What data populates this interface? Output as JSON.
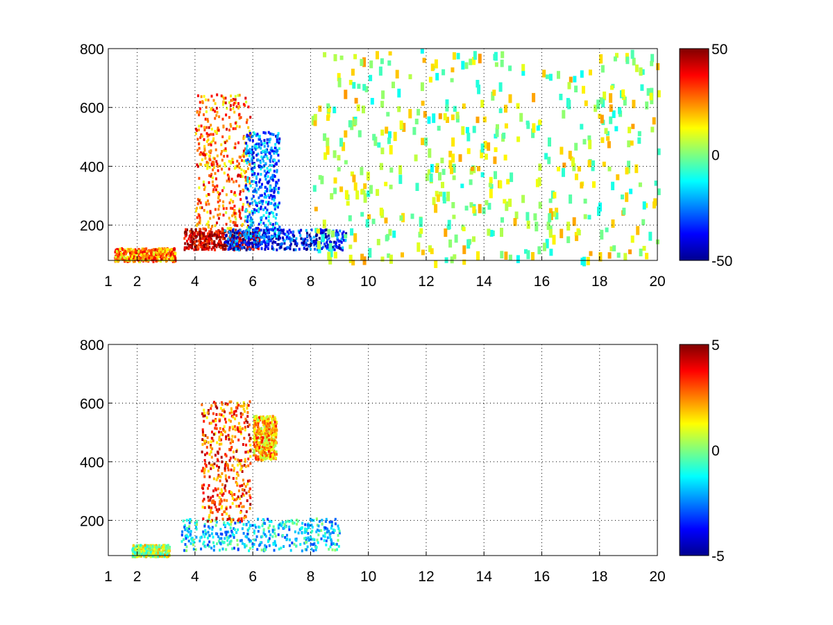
{
  "chart_data": [
    {
      "type": "heatmap",
      "title": "",
      "xlabel": "",
      "ylabel": "",
      "xlim": [
        1,
        20
      ],
      "ylim": [
        80,
        800
      ],
      "xticks": [
        "1",
        "2",
        "4",
        "6",
        "8",
        "10",
        "12",
        "14",
        "16",
        "18",
        "20"
      ],
      "yticks": [
        "200",
        "400",
        "600",
        "800"
      ],
      "grid": true,
      "colormap": "jet",
      "colorbar": {
        "min": -50,
        "max": 50,
        "ticks": [
          "-50",
          "0",
          "50"
        ]
      },
      "features": [
        {
          "label": "low-frequency strip",
          "x": [
            1.2,
            3.3
          ],
          "y": [
            80,
            125
          ],
          "value": 25
        },
        {
          "label": "strong band near 150",
          "x": [
            3.6,
            6.2
          ],
          "y": [
            120,
            190
          ],
          "value": 45
        },
        {
          "label": "negative band near 150",
          "x": [
            5.0,
            9.2
          ],
          "y": [
            120,
            190
          ],
          "value": -35
        },
        {
          "label": "positive plume",
          "x": [
            4.0,
            5.9
          ],
          "y": [
            190,
            650
          ],
          "value": 25
        },
        {
          "label": "negative plume",
          "x": [
            5.7,
            6.9
          ],
          "y": [
            160,
            520
          ],
          "value": -25
        },
        {
          "label": "sparse scatter",
          "x": [
            8.0,
            20.0
          ],
          "y": [
            80,
            800
          ],
          "value": 5
        }
      ]
    },
    {
      "type": "heatmap",
      "title": "",
      "xlabel": "",
      "ylabel": "",
      "xlim": [
        1,
        20
      ],
      "ylim": [
        80,
        800
      ],
      "xticks": [
        "1",
        "2",
        "4",
        "6",
        "8",
        "10",
        "12",
        "14",
        "16",
        "18",
        "20"
      ],
      "yticks": [
        "200",
        "400",
        "600",
        "800"
      ],
      "grid": true,
      "colormap": "jet",
      "colorbar": {
        "min": -5,
        "max": 5,
        "ticks": [
          "-5",
          "0",
          "5"
        ]
      },
      "features": [
        {
          "label": "low-frequency strip",
          "x": [
            1.8,
            3.1
          ],
          "y": [
            80,
            120
          ],
          "value": 0.5
        },
        {
          "label": "band near 150",
          "x": [
            3.5,
            9.0
          ],
          "y": [
            100,
            210
          ],
          "value": -1.5
        },
        {
          "label": "positive plume",
          "x": [
            4.2,
            5.9
          ],
          "y": [
            200,
            610
          ],
          "value": 3
        },
        {
          "label": "side patch",
          "x": [
            6.0,
            6.8
          ],
          "y": [
            410,
            560
          ],
          "value": 2
        }
      ]
    }
  ]
}
